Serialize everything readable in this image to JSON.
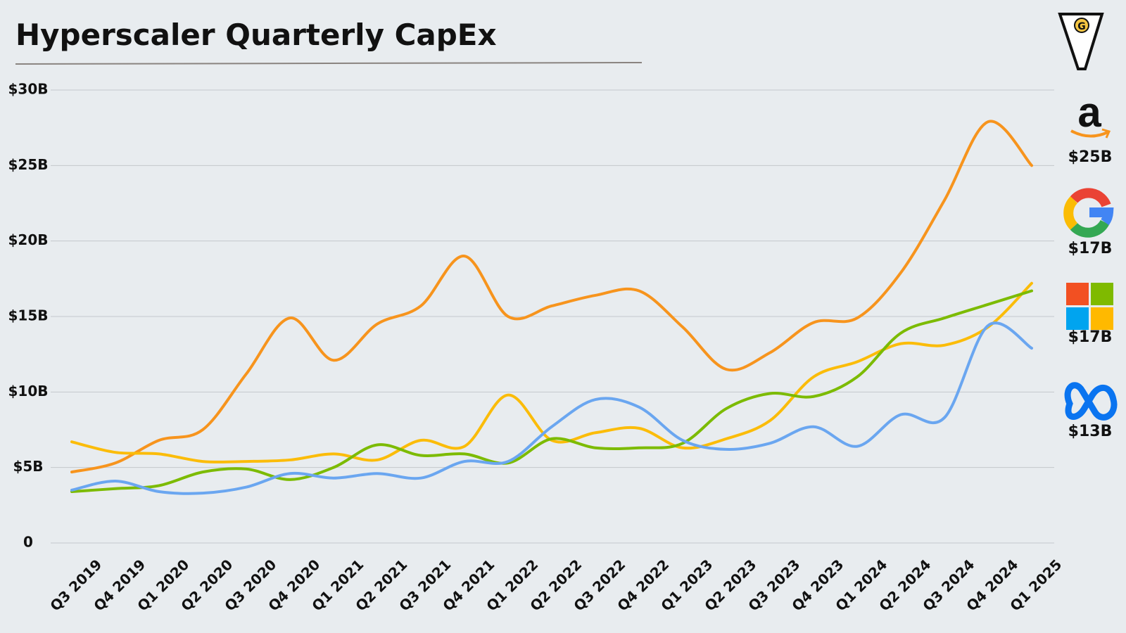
{
  "chart_data": {
    "type": "line",
    "title": "Hyperscaler Quarterly CapEx",
    "categories": [
      "Q3 2019",
      "Q4 2019",
      "Q1 2020",
      "Q2 2020",
      "Q3 2020",
      "Q4 2020",
      "Q1 2021",
      "Q2 2021",
      "Q3 2021",
      "Q4 2021",
      "Q1 2022",
      "Q2 2022",
      "Q3 2022",
      "Q4 2022",
      "Q1 2023",
      "Q2 2023",
      "Q3 2023",
      "Q4 2023",
      "Q1 2024",
      "Q2 2024",
      "Q3 2024",
      "Q4 2024",
      "Q1 2025"
    ],
    "series": [
      {
        "color": "#f7941d",
        "latest_label": "$25B",
        "values": [
          4.7,
          5.3,
          6.8,
          7.5,
          11.2,
          14.9,
          12.1,
          14.5,
          15.7,
          19.0,
          15.0,
          15.7,
          16.4,
          16.7,
          14.3,
          11.5,
          12.6,
          14.6,
          14.9,
          17.9,
          22.7,
          27.9,
          25.0
        ]
      },
      {
        "color": "#fbbc09",
        "latest_label": "$17B",
        "values": [
          6.7,
          6.0,
          5.9,
          5.4,
          5.4,
          5.5,
          5.9,
          5.5,
          6.8,
          6.4,
          9.8,
          6.8,
          7.3,
          7.6,
          6.3,
          6.9,
          8.1,
          11.0,
          12.0,
          13.2,
          13.1,
          14.3,
          17.2
        ]
      },
      {
        "color": "#7cbb00",
        "latest_label": "$17B",
        "values": [
          3.4,
          3.6,
          3.8,
          4.7,
          4.9,
          4.2,
          5.0,
          6.5,
          5.8,
          5.9,
          5.3,
          6.9,
          6.3,
          6.3,
          6.6,
          8.9,
          9.9,
          9.7,
          11.0,
          13.9,
          14.9,
          15.8,
          16.7
        ]
      },
      {
        "color": "#6aa6f0",
        "latest_label": "$13B",
        "values": [
          3.5,
          4.1,
          3.4,
          3.3,
          3.7,
          4.6,
          4.3,
          4.6,
          4.3,
          5.4,
          5.4,
          7.7,
          9.5,
          9.0,
          6.8,
          6.2,
          6.6,
          7.7,
          6.4,
          8.5,
          8.3,
          14.4,
          12.9
        ]
      }
    ],
    "ylim": [
      0,
      30
    ],
    "yticks": [
      0,
      {
        "value": 5,
        "label": "$5B"
      },
      {
        "value": 10,
        "label": "$10B"
      },
      {
        "value": 15,
        "label": "$15B"
      },
      {
        "value": 20,
        "label": "$20B"
      },
      {
        "value": 25,
        "label": "$25B"
      },
      {
        "value": 30,
        "label": "$30B"
      }
    ],
    "grid": true
  }
}
